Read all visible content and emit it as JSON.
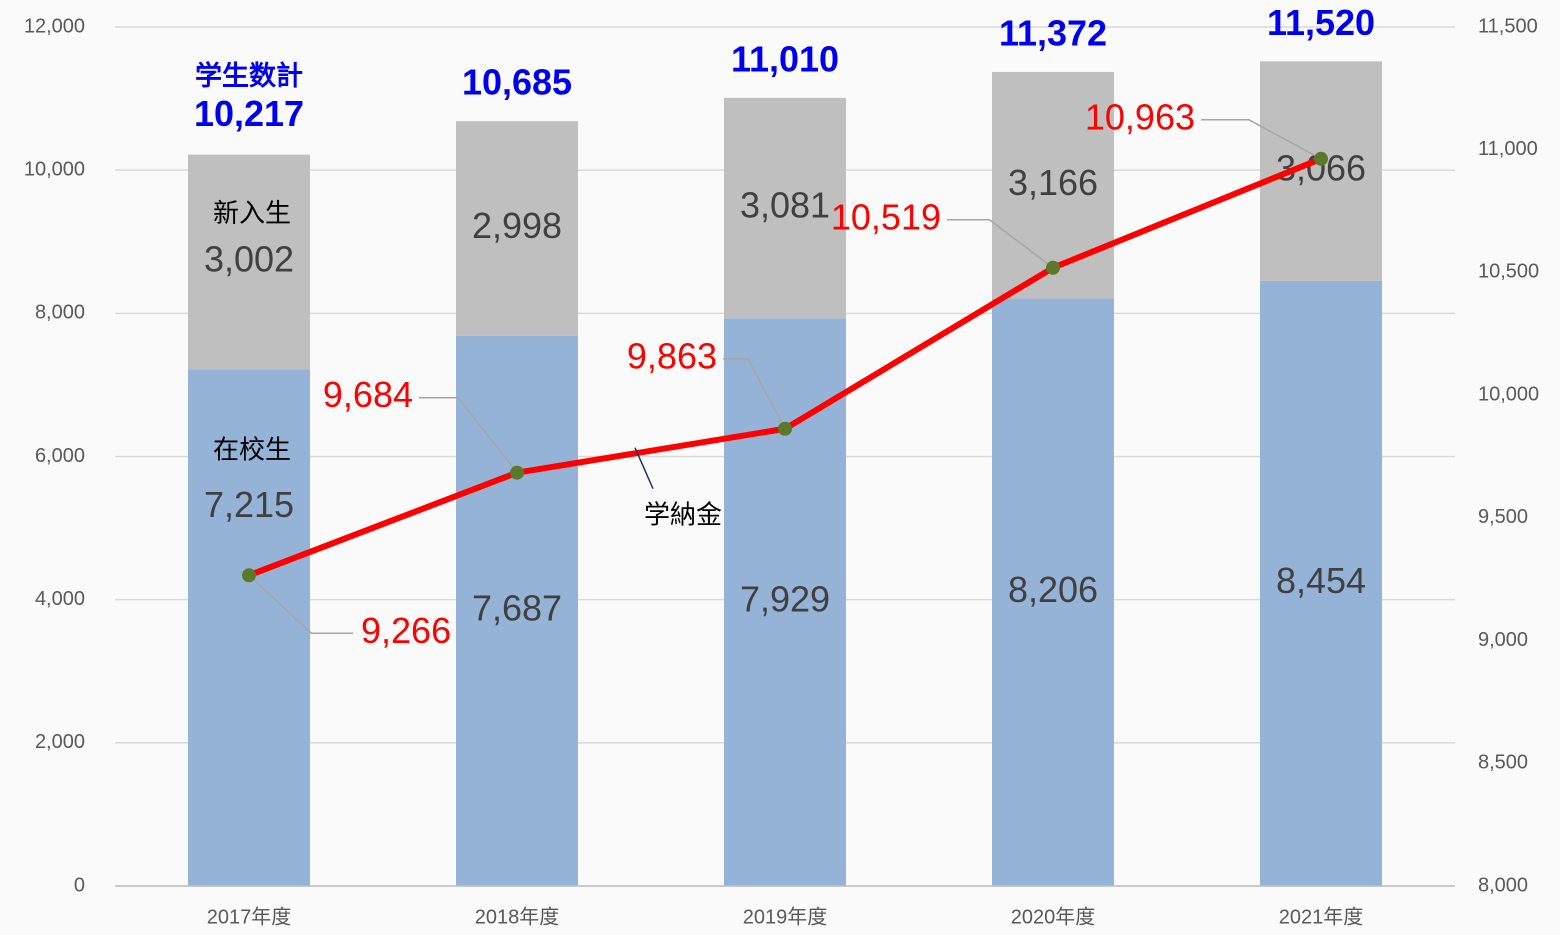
{
  "chart_data": {
    "type": "bar",
    "categories": [
      "2017年度",
      "2018年度",
      "2019年度",
      "2020年度",
      "2021年度"
    ],
    "series": [
      {
        "name": "在校生",
        "color": "#95b3d7",
        "values": [
          7215,
          7687,
          7929,
          8206,
          8454
        ],
        "value_labels": [
          "7,215",
          "7,687",
          "7,929",
          "8,206",
          "8,454"
        ]
      },
      {
        "name": "新入生",
        "color": "#bfbfbf",
        "values": [
          3002,
          2998,
          3081,
          3166,
          3066
        ],
        "value_labels": [
          "3,002",
          "2,998",
          "3,081",
          "3,166",
          "3,066"
        ]
      },
      {
        "name": "学納金",
        "type": "line",
        "axis": "y2",
        "color": "#ff0000",
        "marker_color": "#5a7a2a",
        "values": [
          9266,
          9684,
          9863,
          10519,
          10963
        ],
        "value_labels": [
          "9,266",
          "9,684",
          "9,863",
          "10,519",
          "10,963"
        ]
      }
    ],
    "totals": {
      "name": "学生数計",
      "values": [
        10217,
        10685,
        11010,
        11372,
        11520
      ],
      "value_labels": [
        "10,217",
        "10,685",
        "11,010",
        "11,372",
        "11,520"
      ]
    },
    "ylim": [
      0,
      12000
    ],
    "yticks": [
      0,
      {
        "value": 2000,
        "label": "2,000"
      },
      {
        "value": 4000,
        "label": "4,000"
      },
      {
        "value": 6000,
        "label": "6,000"
      },
      {
        "value": 8000,
        "label": "8,000"
      },
      {
        "value": 10000,
        "label": "10,000"
      },
      {
        "value": 12000,
        "label": "12,000"
      }
    ],
    "y2lim": [
      8000,
      11500
    ],
    "y2ticks": [
      {
        "value": 8000,
        "label": "8,000"
      },
      {
        "value": 8500,
        "label": "8,500"
      },
      {
        "value": 9000,
        "label": "9,000"
      },
      {
        "value": 9500,
        "label": "9,500"
      },
      {
        "value": 10000,
        "label": "10,000"
      },
      {
        "value": 10500,
        "label": "10,500"
      },
      {
        "value": 11000,
        "label": "11,000"
      },
      {
        "value": 11500,
        "label": "11,500"
      }
    ],
    "grid": true
  }
}
